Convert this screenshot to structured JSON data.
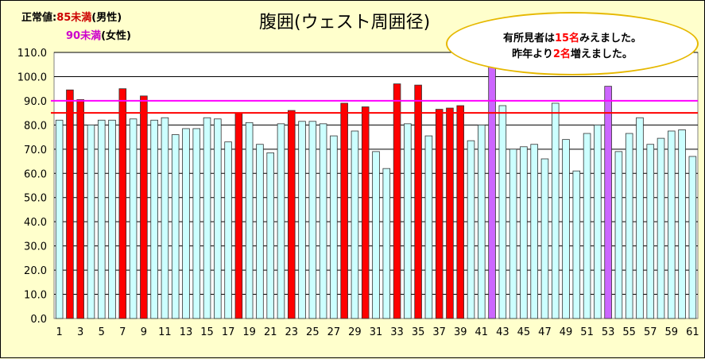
{
  "legend": {
    "male_prefix": "正常値:",
    "male_value": "85未満",
    "male_suffix": "(男性)",
    "female_value": "90未満",
    "female_suffix": "(女性)"
  },
  "callout": {
    "line1_a": "有所見者は",
    "line1_num": "15名",
    "line1_b": "みえました。",
    "line2_a": "昨年より",
    "line2_num": "2名",
    "line2_b": "増えました。"
  },
  "colors": {
    "normal_bar": "#ccffff",
    "male_over": "#ff0000",
    "female_over": "#cc66ff",
    "male_line": "#ff0000",
    "female_line": "#ff00ff",
    "label_red": "#cc0000",
    "label_magenta": "#cc00cc"
  },
  "chart_data": {
    "type": "bar",
    "title": "腹囲(ウェスト周囲径)",
    "ylim": [
      0,
      110
    ],
    "yticks": [
      "0.0",
      "10.0",
      "20.0",
      "30.0",
      "40.0",
      "50.0",
      "60.0",
      "70.0",
      "80.0",
      "90.0",
      "100.0",
      "110.0"
    ],
    "x": [
      1,
      2,
      3,
      4,
      5,
      6,
      7,
      8,
      9,
      10,
      11,
      12,
      13,
      14,
      15,
      16,
      17,
      18,
      19,
      20,
      21,
      22,
      23,
      24,
      25,
      26,
      27,
      28,
      29,
      30,
      31,
      32,
      33,
      34,
      35,
      36,
      37,
      38,
      39,
      40,
      41,
      42,
      43,
      44,
      45,
      46,
      47,
      48,
      49,
      50,
      51,
      52,
      53,
      54,
      55,
      56,
      57,
      58,
      59,
      60,
      61
    ],
    "xtick_labels": [
      "1",
      "3",
      "5",
      "7",
      "9",
      "11",
      "13",
      "15",
      "17",
      "19",
      "21",
      "23",
      "25",
      "27",
      "29",
      "31",
      "33",
      "35",
      "37",
      "39",
      "41",
      "43",
      "45",
      "47",
      "49",
      "51",
      "53",
      "55",
      "57",
      "59",
      "61"
    ],
    "values": [
      82,
      94.5,
      90.5,
      80,
      82,
      82,
      95,
      82.5,
      92,
      82,
      83,
      76,
      78.5,
      78.5,
      83,
      82.5,
      73,
      85,
      81,
      72,
      68.5,
      80.5,
      86,
      81.5,
      81.5,
      80.5,
      75.5,
      89,
      77.5,
      87.5,
      69,
      62,
      97,
      80.5,
      96.5,
      75.5,
      86.5,
      87,
      88,
      73.5,
      80,
      108,
      88,
      70,
      71,
      72,
      66,
      89,
      74,
      61,
      76.5,
      80,
      96,
      69,
      76.5,
      83,
      72,
      74.5,
      77.5,
      78,
      67
    ],
    "status": [
      "n",
      "m",
      "m",
      "n",
      "n",
      "n",
      "m",
      "n",
      "m",
      "n",
      "n",
      "n",
      "n",
      "n",
      "n",
      "n",
      "n",
      "m",
      "n",
      "n",
      "n",
      "n",
      "m",
      "n",
      "n",
      "n",
      "n",
      "m",
      "n",
      "m",
      "n",
      "n",
      "m",
      "n",
      "m",
      "n",
      "m",
      "m",
      "m",
      "n",
      "n",
      "f",
      "n",
      "n",
      "n",
      "n",
      "n",
      "n",
      "n",
      "n",
      "n",
      "n",
      "f",
      "n",
      "n",
      "n",
      "n",
      "n",
      "n",
      "n",
      "n"
    ],
    "reference_lines": [
      {
        "value": 85,
        "color": "#ff0000"
      },
      {
        "value": 90,
        "color": "#ff00ff"
      }
    ],
    "grid": true
  }
}
